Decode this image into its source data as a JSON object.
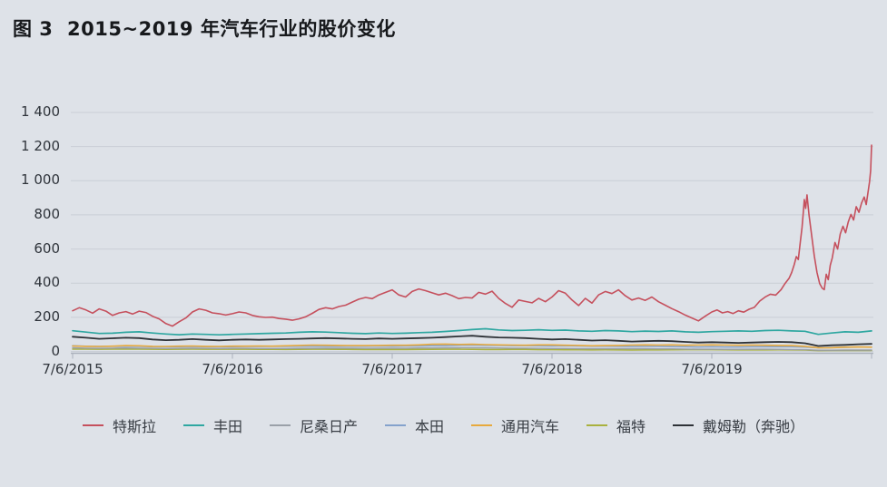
{
  "header": {
    "title": "图 3  2015~2019 年汽车行业的股价变化"
  },
  "chart_data": {
    "type": "line",
    "title": "图 3  2015~2019 年汽车行业的股价变化",
    "ylim": [
      0,
      1400
    ],
    "y_tick_step": 200,
    "y_ticks": [
      "1 400",
      "1 200",
      "1 000",
      "800",
      "600",
      "400",
      "200",
      "0"
    ],
    "x_ticks": [
      "7/6/2015",
      "7/6/2016",
      "7/6/2017",
      "7/6/2018",
      "7/6/2019"
    ],
    "x_unit": "months since 7/6/2015",
    "x_range_months": 60,
    "grid": true,
    "legend_position": "bottom",
    "colors": {
      "background": "#dee2e8",
      "gridline": "#c9ced6",
      "axis": "#aab0bb",
      "text": "#2f343b"
    },
    "series": [
      {
        "name": "特斯拉",
        "color": "#c5505d",
        "width": 1.6,
        "points_spaced": {
          "start": 0,
          "step": 0.5,
          "values": [
            238,
            256,
            243,
            224,
            249,
            236,
            211,
            226,
            233,
            219,
            236,
            228,
            206,
            191,
            163,
            148,
            174,
            196,
            231,
            249,
            241,
            226,
            221,
            213,
            221,
            231,
            226,
            211,
            203,
            199,
            201,
            193,
            189,
            183,
            191,
            203,
            223,
            246,
            256,
            249,
            263,
            271,
            289,
            306,
            316,
            309,
            331,
            346,
            361,
            331,
            319,
            351,
            366,
            356,
            343,
            331,
            341,
            327,
            309,
            316,
            313,
            346,
            336,
            353,
            311,
            281,
            259,
            301,
            293,
            285,
            311,
            291,
            319,
            356,
            341,
            301,
            269,
            311,
            283,
            331,
            351,
            339,
            361,
            326,
            301,
            313,
            299,
            319,
            291,
            271,
            251,
            233,
            213,
            196,
            179,
            206,
            231
          ]
        },
        "points_tail": [
          [
            48.4,
            243
          ],
          [
            48.8,
            226
          ],
          [
            49.2,
            233
          ],
          [
            49.6,
            222
          ],
          [
            50,
            238
          ],
          [
            50.4,
            230
          ],
          [
            50.8,
            247
          ],
          [
            51.2,
            258
          ],
          [
            51.6,
            295
          ],
          [
            52,
            318
          ],
          [
            52.4,
            335
          ],
          [
            52.8,
            330
          ],
          [
            53.2,
            362
          ],
          [
            53.5,
            398
          ],
          [
            53.8,
            428
          ],
          [
            54,
            462
          ],
          [
            54.2,
            510
          ],
          [
            54.35,
            556
          ],
          [
            54.5,
            538
          ],
          [
            54.65,
            640
          ],
          [
            54.78,
            725
          ],
          [
            54.88,
            820
          ],
          [
            54.95,
            890
          ],
          [
            55.05,
            838
          ],
          [
            55.15,
            917
          ],
          [
            55.3,
            800
          ],
          [
            55.5,
            680
          ],
          [
            55.7,
            560
          ],
          [
            55.9,
            462
          ],
          [
            56.1,
            398
          ],
          [
            56.3,
            370
          ],
          [
            56.45,
            362
          ],
          [
            56.6,
            452
          ],
          [
            56.75,
            420
          ],
          [
            56.9,
            505
          ],
          [
            57.05,
            548
          ],
          [
            57.25,
            638
          ],
          [
            57.45,
            600
          ],
          [
            57.65,
            688
          ],
          [
            57.85,
            733
          ],
          [
            58.05,
            695
          ],
          [
            58.25,
            758
          ],
          [
            58.45,
            803
          ],
          [
            58.65,
            770
          ],
          [
            58.85,
            848
          ],
          [
            59.05,
            815
          ],
          [
            59.25,
            870
          ],
          [
            59.45,
            905
          ],
          [
            59.6,
            860
          ],
          [
            59.75,
            940
          ],
          [
            59.85,
            995
          ],
          [
            59.93,
            1060
          ],
          [
            60,
            1208
          ]
        ]
      },
      {
        "name": "丰田",
        "color": "#2fa7a1",
        "width": 1.7,
        "points_spaced": {
          "start": 0,
          "step": 1,
          "values": [
            121,
            113,
            105,
            107,
            112,
            115,
            108,
            102,
            98,
            102,
            100,
            97,
            100,
            102,
            104,
            106,
            108,
            112,
            115,
            113,
            110,
            106,
            104,
            108,
            105,
            107,
            110,
            112,
            117,
            122,
            128,
            133,
            126,
            122,
            124,
            127,
            123,
            125,
            120,
            118,
            122,
            120,
            116,
            119,
            117,
            120,
            115,
            112,
            116,
            118,
            120,
            118,
            122,
            124,
            120,
            118,
            100,
            108,
            115,
            112,
            120
          ]
        }
      },
      {
        "name": "尼桑日产",
        "color": "#9aa0a8",
        "width": 1.4,
        "points_spaced": {
          "start": 0,
          "step": 1,
          "values": [
            21,
            19,
            18,
            19,
            20,
            19,
            18,
            17,
            18,
            19,
            18,
            17,
            18,
            18,
            17,
            17,
            17,
            18,
            18,
            19,
            19,
            19,
            18,
            19,
            19,
            19,
            20,
            20,
            21,
            21,
            22,
            21,
            20,
            19,
            19,
            18,
            17,
            17,
            16,
            16,
            16,
            16,
            16,
            16,
            15,
            15,
            14,
            13,
            13,
            12,
            12,
            13,
            13,
            12,
            11,
            10,
            7,
            7,
            8,
            8,
            8
          ]
        }
      },
      {
        "name": "本田",
        "color": "#84a2cc",
        "width": 1.5,
        "points_spaced": {
          "start": 0,
          "step": 1,
          "values": [
            33,
            31,
            29,
            30,
            31,
            30,
            28,
            27,
            28,
            29,
            28,
            27,
            28,
            29,
            29,
            30,
            30,
            31,
            31,
            30,
            30,
            31,
            31,
            32,
            31,
            32,
            32,
            33,
            34,
            36,
            37,
            36,
            35,
            34,
            34,
            33,
            32,
            33,
            32,
            31,
            31,
            30,
            29,
            30,
            29,
            28,
            27,
            26,
            27,
            26,
            26,
            27,
            27,
            28,
            27,
            25,
            21,
            23,
            24,
            25,
            25
          ]
        }
      },
      {
        "name": "通用汽车",
        "color": "#e7a93d",
        "width": 1.6,
        "points_spaced": {
          "start": 0,
          "step": 1,
          "values": [
            32,
            30,
            29,
            31,
            34,
            33,
            30,
            29,
            31,
            32,
            30,
            29,
            31,
            31,
            32,
            31,
            33,
            35,
            37,
            36,
            35,
            34,
            34,
            35,
            36,
            36,
            38,
            42,
            43,
            41,
            42,
            40,
            38,
            37,
            36,
            38,
            38,
            36,
            35,
            33,
            34,
            35,
            37,
            38,
            37,
            38,
            36,
            37,
            38,
            37,
            36,
            37,
            36,
            35,
            34,
            30,
            21,
            22,
            25,
            26,
            25
          ]
        }
      },
      {
        "name": "福特",
        "color": "#a9b13e",
        "width": 1.6,
        "points_spaced": {
          "start": 0,
          "step": 1,
          "values": [
            14,
            13.5,
            13,
            14,
            14,
            14,
            12.5,
            12,
            13,
            13.5,
            13,
            12.5,
            13,
            12.5,
            12,
            12,
            11.5,
            12,
            12.5,
            12.5,
            12,
            11.5,
            11,
            11,
            11,
            11,
            11.5,
            12,
            12.5,
            12.5,
            12,
            11,
            11,
            11.5,
            11.5,
            10,
            10,
            9.5,
            9.5,
            9,
            9.5,
            9,
            8.5,
            8.8,
            9.2,
            9.5,
            10,
            10.2,
            10,
            9.5,
            9.2,
            9,
            9,
            9.3,
            9,
            8,
            5,
            5.2,
            5.8,
            6,
            6
          ]
        }
      },
      {
        "name": "戴姆勒（奔驰）",
        "color": "#2e3237",
        "width": 1.8,
        "points_spaced": {
          "start": 0,
          "step": 1,
          "values": [
            86,
            80,
            74,
            77,
            80,
            78,
            70,
            66,
            68,
            72,
            68,
            65,
            68,
            70,
            68,
            70,
            72,
            74,
            76,
            78,
            76,
            74,
            72,
            76,
            74,
            76,
            78,
            80,
            84,
            88,
            92,
            86,
            82,
            80,
            78,
            74,
            70,
            72,
            68,
            64,
            66,
            62,
            58,
            60,
            62,
            60,
            56,
            52,
            54,
            52,
            50,
            52,
            54,
            56,
            54,
            48,
            32,
            36,
            38,
            42,
            44
          ]
        }
      }
    ]
  }
}
